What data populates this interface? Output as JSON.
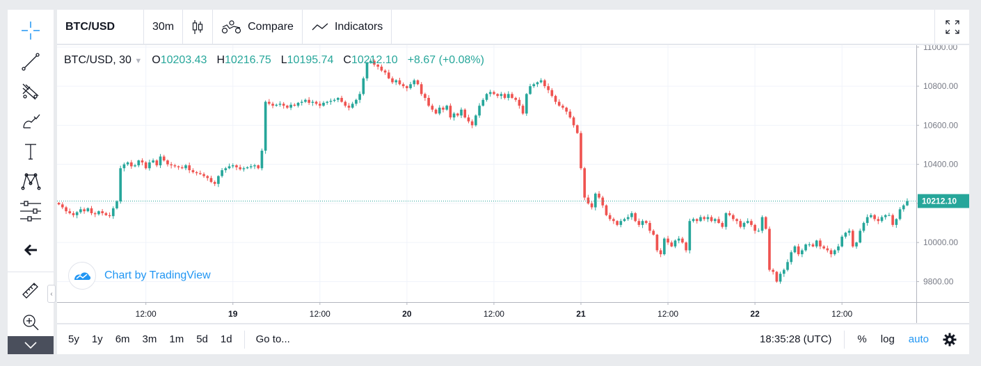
{
  "toolbar": {
    "symbol": "BTC/USD",
    "interval": "30m",
    "compare_label": "Compare",
    "indicators_label": "Indicators"
  },
  "legend": {
    "title": "BTC/USD, 30",
    "o_label": "O",
    "o_value": "10203.43",
    "h_label": "H",
    "h_value": "10216.75",
    "l_label": "L",
    "l_value": "10195.74",
    "c_label": "C",
    "c_value": "10212.10",
    "change": "+8.67 (+0.08%)"
  },
  "watermark": {
    "text": "Chart by TradingView"
  },
  "bottom": {
    "ranges": [
      "5y",
      "1y",
      "6m",
      "3m",
      "1m",
      "5d",
      "1d"
    ],
    "goto": "Go to...",
    "clock": "18:35:28 (UTC)",
    "percent": "%",
    "log": "log",
    "auto": "auto"
  },
  "colors": {
    "up": "#26a69a",
    "down": "#ef5350",
    "accent": "#2196f3",
    "last_price": "#26a69a"
  },
  "icons": [
    "crosshair-icon",
    "trend-line-icon",
    "pitchfork-icon",
    "brush-icon",
    "text-icon",
    "pattern-icon",
    "prediction-icon",
    "arrow-left-icon",
    "ruler-icon",
    "zoom-in-icon",
    "chevron-down-icon",
    "candles-icon",
    "compare-icon",
    "indicators-icon",
    "fullscreen-icon",
    "settings-icon",
    "tradingview-logo-icon"
  ],
  "chart_data": {
    "type": "candlestick",
    "y_ticks": [
      "11000.00",
      "10800.00",
      "10600.00",
      "10400.00",
      "10200.00",
      "10000.00",
      "9800.00"
    ],
    "y_tick_values": [
      11000,
      10800,
      10600,
      10400,
      10200,
      10000,
      9800
    ],
    "ylim": [
      9695,
      11010
    ],
    "x_ticks": [
      {
        "label": "12:00",
        "t": 24,
        "bold": false
      },
      {
        "label": "19",
        "t": 48,
        "bold": true
      },
      {
        "label": "12:00",
        "t": 72,
        "bold": false
      },
      {
        "label": "20",
        "t": 96,
        "bold": true
      },
      {
        "label": "12:00",
        "t": 120,
        "bold": false
      },
      {
        "label": "21",
        "t": 144,
        "bold": true
      },
      {
        "label": "12:00",
        "t": 168,
        "bold": false
      },
      {
        "label": "22",
        "t": 192,
        "bold": true
      },
      {
        "label": "12:00",
        "t": 216,
        "bold": false
      }
    ],
    "last_price": 10212.1,
    "last_price_label": "10212.10",
    "close_series": [
      10195,
      10180,
      10160,
      10150,
      10140,
      10155,
      10170,
      10160,
      10175,
      10150,
      10145,
      10160,
      10150,
      10140,
      10135,
      10175,
      10210,
      10380,
      10400,
      10410,
      10390,
      10395,
      10420,
      10410,
      10380,
      10410,
      10420,
      10395,
      10440,
      10420,
      10400,
      10395,
      10390,
      10385,
      10380,
      10395,
      10370,
      10360,
      10355,
      10350,
      10340,
      10330,
      10310,
      10300,
      10340,
      10370,
      10380,
      10390,
      10395,
      10385,
      10375,
      10380,
      10385,
      10390,
      10395,
      10380,
      10470,
      10720,
      10710,
      10700,
      10705,
      10710,
      10700,
      10690,
      10705,
      10700,
      10715,
      10720,
      10730,
      10715,
      10720,
      10710,
      10700,
      10715,
      10720,
      10725,
      10730,
      10740,
      10720,
      10700,
      10690,
      10710,
      10730,
      10760,
      10840,
      10920,
      10930,
      10910,
      10900,
      10880,
      10870,
      10840,
      10820,
      10830,
      10810,
      10800,
      10790,
      10810,
      10830,
      10810,
      10760,
      10740,
      10700,
      10680,
      10660,
      10690,
      10680,
      10700,
      10640,
      10660,
      10650,
      10680,
      10640,
      10620,
      10600,
      10650,
      10700,
      10730,
      10760,
      10770,
      10760,
      10750,
      10760,
      10740,
      10760,
      10740,
      10730,
      10700,
      10660,
      10760,
      10800,
      10810,
      10820,
      10830,
      10800,
      10780,
      10750,
      10720,
      10700,
      10690,
      10670,
      10640,
      10600,
      10560,
      10380,
      10230,
      10200,
      10180,
      10250,
      10230,
      10190,
      10140,
      10120,
      10110,
      10090,
      10110,
      10120,
      10130,
      10150,
      10110,
      10090,
      10110,
      10100,
      10060,
      10040,
      9960,
      9940,
      10020,
      10000,
      9980,
      10010,
      10020,
      10000,
      9960,
      10110,
      10120,
      10110,
      10130,
      10120,
      10130,
      10110,
      10120,
      10100,
      10080,
      10150,
      10140,
      10120,
      10110,
      10080,
      10100,
      10110,
      10090,
      10060,
      10060,
      10130,
      10070,
      9860,
      9850,
      9800,
      9840,
      9860,
      9900,
      9950,
      9980,
      9940,
      9960,
      9990,
      9990,
      9980,
      10010,
      9980,
      9970,
      9960,
      9940,
      9960,
      9980,
      10030,
      10050,
      10060,
      9980,
      10000,
      10060,
      10100,
      10130,
      10140,
      10120,
      10110,
      10130,
      10140,
      10140,
      10090,
      10120,
      10170,
      10190,
      10212
    ]
  }
}
